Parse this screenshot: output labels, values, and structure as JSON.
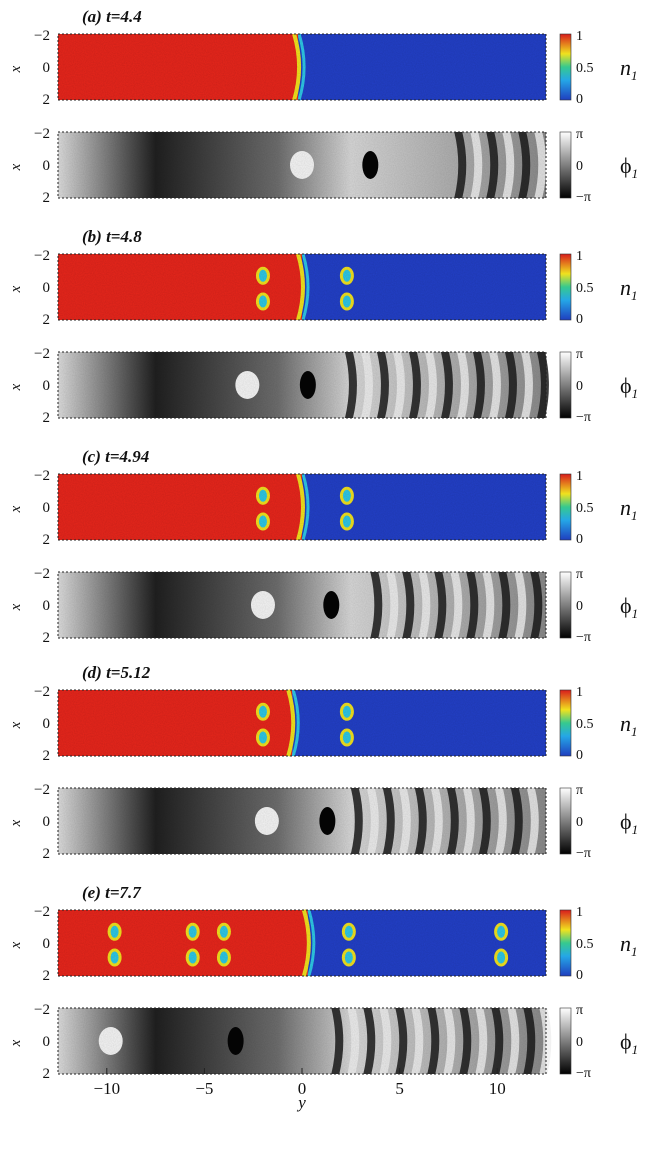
{
  "figure": {
    "panels": [
      {
        "label": "(a) t=4.4",
        "density": {
          "colorbar_ticks": [
            "1",
            "0.5",
            "0"
          ],
          "quantity": "n",
          "quantity_sub": "1",
          "features": {
            "front_y": -0.2,
            "vortex_x": [],
            "vortex_y": []
          }
        },
        "phase": {
          "colorbar_ticks": [
            "π",
            "0",
            "−π"
          ],
          "quantity": "ϕ",
          "quantity_sub": "1",
          "features": {
            "vortices_y": [
              0,
              3.5
            ],
            "stripes_from_y": 7.8
          }
        }
      },
      {
        "label": "(b) t=4.8",
        "density": {
          "colorbar_ticks": [
            "1",
            "0.5",
            "0"
          ],
          "quantity": "n",
          "quantity_sub": "1",
          "features": {
            "front_y": 0,
            "vortex_y": [
              -2.0,
              2.3
            ]
          }
        },
        "phase": {
          "colorbar_ticks": [
            "π",
            "0",
            "−π"
          ],
          "quantity": "ϕ",
          "quantity_sub": "1",
          "features": {
            "vortices_y": [
              -2.8,
              0.3
            ],
            "stripes_from_y": 2.2
          }
        }
      },
      {
        "label": "(c) t=4.94",
        "density": {
          "colorbar_ticks": [
            "1",
            "0.5",
            "0"
          ],
          "quantity": "n",
          "quantity_sub": "1",
          "features": {
            "front_y": 0,
            "vortex_y": [
              -2.0,
              2.3
            ]
          }
        },
        "phase": {
          "colorbar_ticks": [
            "π",
            "0",
            "−π"
          ],
          "quantity": "ϕ",
          "quantity_sub": "1",
          "features": {
            "vortices_y": [
              -2.0,
              1.5
            ],
            "stripes_from_y": 3.5
          }
        }
      },
      {
        "label": "(d) t=5.12",
        "density": {
          "colorbar_ticks": [
            "1",
            "0.5",
            "0"
          ],
          "quantity": "n",
          "quantity_sub": "1",
          "features": {
            "front_y": -0.5,
            "vortex_y": [
              -2.0,
              2.3
            ]
          }
        },
        "phase": {
          "colorbar_ticks": [
            "π",
            "0",
            "−π"
          ],
          "quantity": "ϕ",
          "quantity_sub": "1",
          "features": {
            "vortices_y": [
              -1.8,
              1.3
            ],
            "stripes_from_y": 2.5
          }
        }
      },
      {
        "label": "(e) t=7.7",
        "density": {
          "colorbar_ticks": [
            "1",
            "0.5",
            "0"
          ],
          "quantity": "n",
          "quantity_sub": "1",
          "features": {
            "front_y": 0.3,
            "vortex_y": [
              -9.6,
              -5.6,
              -4.0,
              2.4,
              10.2
            ]
          }
        },
        "phase": {
          "colorbar_ticks": [
            "π",
            "0",
            "−π"
          ],
          "quantity": "ϕ",
          "quantity_sub": "1",
          "features": {
            "vortices_y": [
              -9.8,
              -3.4
            ],
            "stripes_from_y": 1.5
          }
        }
      }
    ],
    "x_axis_ticks": [
      "−2",
      "0",
      "2"
    ],
    "x_axis_label": "x",
    "y_axis_ticks": [
      "−10",
      "−5",
      "0",
      "5",
      "10"
    ],
    "y_axis_label": "y",
    "colors": {
      "hot": "#e8261c",
      "cold": "#2340c8",
      "yellow": "#f2e21e",
      "cyan": "#2ec8e6"
    }
  }
}
